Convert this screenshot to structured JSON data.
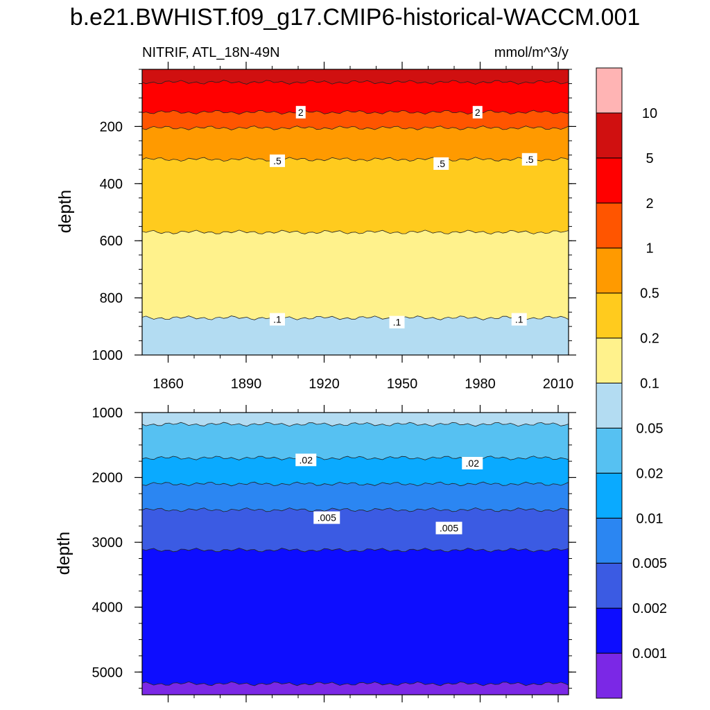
{
  "title": "b.e21.BWHIST.f09_g17.CMIP6-historical-WACCM.001",
  "left_subtitle": "NITRIF, ATL_18N-49N",
  "right_subtitle": "mmol/m^3/y",
  "chart_data": {
    "type": "heatmap",
    "subtype": "filled-contour time-depth section",
    "variable": "NITRIF",
    "region": "ATL_18N-49N",
    "units": "mmol/m^3/y",
    "x": {
      "range": [
        1850,
        2014
      ],
      "ticks": [
        1860,
        1890,
        1920,
        1950,
        1980,
        2010
      ],
      "minor_step": 10
    },
    "colorbar": {
      "levels": [
        0.001,
        0.002,
        0.005,
        0.01,
        0.02,
        0.05,
        0.1,
        0.2,
        0.5,
        1,
        2,
        5,
        10
      ],
      "labels": [
        "0.001",
        "0.002",
        "0.005",
        "0.01",
        "0.02",
        "0.05",
        "0.1",
        "0.2",
        "0.5",
        "1",
        "2",
        "5",
        "10"
      ],
      "colors": [
        "#7b28e6",
        "#0d0dff",
        "#3b5be3",
        "#2b86f2",
        "#0aaaff",
        "#56c1f2",
        "#b3dcf2",
        "#fff28c",
        "#ffcb1e",
        "#ff9a00",
        "#ff5500",
        "#ff0000",
        "#d01010",
        "#ffb4b4"
      ]
    },
    "panels": [
      {
        "ylabel": "depth",
        "ylim": [
          0,
          1000
        ],
        "yticks": [
          200,
          400,
          600,
          800,
          1000
        ],
        "y_minor_step": 50,
        "contours": [
          {
            "level": 5,
            "depth": 45
          },
          {
            "level": 2,
            "depth": 150
          },
          {
            "level": 1,
            "depth": 205
          },
          {
            "level": 0.5,
            "depth": 315
          },
          {
            "level": 0.2,
            "depth": 570
          },
          {
            "level": 0.1,
            "depth": 870
          }
        ],
        "contour_labels": [
          {
            "text": "2",
            "year": 1911,
            "depth": 150
          },
          {
            "text": "2",
            "year": 1979,
            "depth": 150
          },
          {
            "text": ".5",
            "year": 1902,
            "depth": 320
          },
          {
            "text": ".5",
            "year": 1965,
            "depth": 330
          },
          {
            "text": ".5",
            "year": 1999,
            "depth": 315
          },
          {
            "text": ".1",
            "year": 1902,
            "depth": 875
          },
          {
            "text": ".1",
            "year": 1948,
            "depth": 885
          },
          {
            "text": ".1",
            "year": 1995,
            "depth": 875
          }
        ]
      },
      {
        "ylabel": "depth",
        "ylim": [
          1000,
          5350
        ],
        "yticks": [
          1000,
          2000,
          3000,
          4000,
          5000
        ],
        "y_minor_step": 250,
        "contours": [
          {
            "level": 0.05,
            "depth": 1180
          },
          {
            "level": 0.02,
            "depth": 1700
          },
          {
            "level": 0.01,
            "depth": 2100
          },
          {
            "level": 0.005,
            "depth": 2500
          },
          {
            "level": 0.002,
            "depth": 3120
          },
          {
            "level": 0.001,
            "depth": 5180
          }
        ],
        "contour_labels": [
          {
            "text": ".02",
            "year": 1913,
            "depth": 1730
          },
          {
            "text": ".02",
            "year": 1977,
            "depth": 1780
          },
          {
            "text": ".005",
            "year": 1921,
            "depth": 2620
          },
          {
            "text": ".005",
            "year": 1968,
            "depth": 2780
          }
        ]
      }
    ]
  }
}
